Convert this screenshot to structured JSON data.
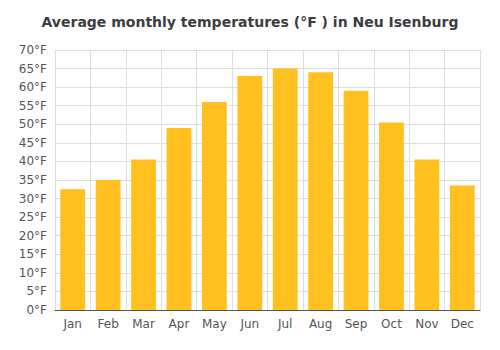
{
  "chart_data": {
    "type": "bar",
    "title": "Average monthly temperatures (°F ) in Neu Isenburg",
    "categories": [
      "Jan",
      "Feb",
      "Mar",
      "Apr",
      "May",
      "Jun",
      "Jul",
      "Aug",
      "Sep",
      "Oct",
      "Nov",
      "Dec"
    ],
    "values": [
      32.5,
      35.0,
      40.5,
      49.0,
      56.0,
      63.0,
      65.0,
      64.0,
      59.0,
      50.5,
      40.5,
      33.5
    ],
    "color": "#FFC020",
    "ylim": [
      0,
      70
    ],
    "yticks": [
      {
        "value": 0,
        "label": "0°F"
      },
      {
        "value": 5,
        "label": "5°F"
      },
      {
        "value": 10,
        "label": "10°F"
      },
      {
        "value": 15,
        "label": "15°F"
      },
      {
        "value": 20,
        "label": "20°F"
      },
      {
        "value": 25,
        "label": "25°F"
      },
      {
        "value": 30,
        "label": "30°F"
      },
      {
        "value": 35,
        "label": "35°F"
      },
      {
        "value": 40,
        "label": "40°F"
      },
      {
        "value": 45,
        "label": "45°F"
      },
      {
        "value": 50,
        "label": "50°F"
      },
      {
        "value": 55,
        "label": "55°F"
      },
      {
        "value": 60,
        "label": "60°F"
      },
      {
        "value": 65,
        "label": "65°F"
      },
      {
        "value": 70,
        "label": "70°F"
      }
    ],
    "grid": true
  }
}
